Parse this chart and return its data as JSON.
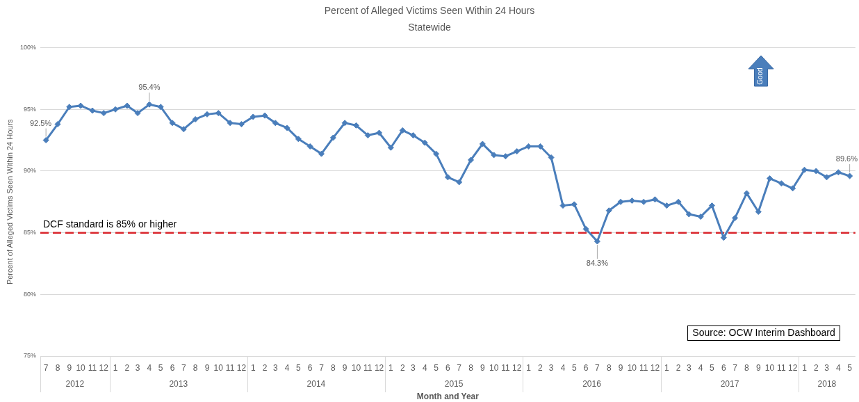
{
  "chart_data": {
    "type": "line",
    "title": "Percent of Alleged Victims Seen Within 24 Hours",
    "subtitle": "Statewide",
    "xlabel": "Month and Year",
    "ylabel": "Percent of Alleged Victims Seen Within 24 Hours",
    "x": [
      "2012-07",
      "2012-08",
      "2012-09",
      "2012-10",
      "2012-11",
      "2012-12",
      "2013-01",
      "2013-02",
      "2013-03",
      "2013-04",
      "2013-05",
      "2013-06",
      "2013-07",
      "2013-08",
      "2013-09",
      "2013-10",
      "2013-11",
      "2013-12",
      "2014-01",
      "2014-02",
      "2014-03",
      "2014-04",
      "2014-05",
      "2014-06",
      "2014-07",
      "2014-08",
      "2014-09",
      "2014-10",
      "2014-11",
      "2014-12",
      "2015-01",
      "2015-02",
      "2015-03",
      "2015-04",
      "2015-05",
      "2015-06",
      "2015-07",
      "2015-08",
      "2015-09",
      "2015-10",
      "2015-11",
      "2015-12",
      "2016-01",
      "2016-02",
      "2016-03",
      "2016-04",
      "2016-05",
      "2016-06",
      "2016-07",
      "2016-08",
      "2016-09",
      "2016-10",
      "2016-11",
      "2016-12",
      "2017-01",
      "2017-02",
      "2017-03",
      "2017-04",
      "2017-05",
      "2017-06",
      "2017-07",
      "2017-08",
      "2017-09",
      "2017-10",
      "2017-11",
      "2017-12",
      "2018-01",
      "2018-02",
      "2018-03",
      "2018-04",
      "2018-05"
    ],
    "values": [
      92.5,
      93.8,
      95.2,
      95.3,
      94.9,
      94.7,
      95.0,
      95.3,
      94.7,
      95.4,
      95.2,
      93.9,
      93.4,
      94.2,
      94.6,
      94.7,
      93.9,
      93.8,
      94.4,
      94.5,
      93.9,
      93.5,
      92.6,
      92.0,
      91.4,
      92.7,
      93.9,
      93.7,
      92.9,
      93.1,
      91.9,
      93.3,
      92.9,
      92.3,
      91.4,
      89.5,
      89.1,
      90.9,
      92.2,
      91.3,
      91.2,
      91.6,
      92.0,
      92.0,
      91.1,
      87.2,
      87.3,
      85.3,
      84.3,
      86.8,
      87.5,
      87.6,
      87.5,
      87.7,
      87.2,
      87.5,
      86.5,
      86.3,
      87.2,
      84.6,
      86.2,
      88.2,
      86.7,
      89.4,
      89.0,
      88.6,
      90.1,
      90.0,
      89.5,
      89.9,
      89.6
    ],
    "value_labels": [
      "92.5%",
      null,
      null,
      null,
      null,
      null,
      null,
      null,
      null,
      "95.4%",
      null,
      null,
      null,
      null,
      null,
      null,
      null,
      null,
      null,
      null,
      null,
      null,
      null,
      null,
      null,
      null,
      null,
      null,
      null,
      null,
      null,
      null,
      null,
      null,
      null,
      null,
      null,
      null,
      null,
      null,
      null,
      null,
      null,
      null,
      null,
      null,
      null,
      null,
      "84.3%",
      null,
      null,
      null,
      null,
      null,
      null,
      null,
      null,
      null,
      null,
      null,
      null,
      null,
      null,
      null,
      null,
      null,
      null,
      null,
      null,
      null,
      "89.6%"
    ],
    "color": "#4a7ebb",
    "marker": "diamond",
    "line_style": "solid",
    "ylim": [
      75,
      100
    ],
    "yticks": [
      {
        "value": 75,
        "label": "75%"
      },
      {
        "value": 80,
        "label": "80%"
      },
      {
        "value": 85,
        "label": "85%"
      },
      {
        "value": 90,
        "label": "90%"
      },
      {
        "value": 95,
        "label": "95%"
      },
      {
        "value": 100,
        "label": "100%"
      }
    ],
    "xlim": [
      "2012-06-16",
      "2018-05-16"
    ],
    "xticks": [
      {
        "value": "2012-07",
        "label": "7"
      },
      {
        "value": "2012-08",
        "label": "8"
      },
      {
        "value": "2012-09",
        "label": "9"
      },
      {
        "value": "2012-10",
        "label": "10"
      },
      {
        "value": "2012-11",
        "label": "11"
      },
      {
        "value": "2012-12",
        "label": "12"
      },
      {
        "value": "2013-01",
        "label": "1"
      },
      {
        "value": "2013-02",
        "label": "2"
      },
      {
        "value": "2013-03",
        "label": "3"
      },
      {
        "value": "2013-04",
        "label": "4"
      },
      {
        "value": "2013-05",
        "label": "5"
      },
      {
        "value": "2013-06",
        "label": "6"
      },
      {
        "value": "2013-07",
        "label": "7"
      },
      {
        "value": "2013-08",
        "label": "8"
      },
      {
        "value": "2013-09",
        "label": "9"
      },
      {
        "value": "2013-10",
        "label": "10"
      },
      {
        "value": "2013-11",
        "label": "11"
      },
      {
        "value": "2013-12",
        "label": "12"
      },
      {
        "value": "2014-01",
        "label": "1"
      },
      {
        "value": "2014-02",
        "label": "2"
      },
      {
        "value": "2014-03",
        "label": "3"
      },
      {
        "value": "2014-04",
        "label": "4"
      },
      {
        "value": "2014-05",
        "label": "5"
      },
      {
        "value": "2014-06",
        "label": "6"
      },
      {
        "value": "2014-07",
        "label": "7"
      },
      {
        "value": "2014-08",
        "label": "8"
      },
      {
        "value": "2014-09",
        "label": "9"
      },
      {
        "value": "2014-10",
        "label": "10"
      },
      {
        "value": "2014-11",
        "label": "11"
      },
      {
        "value": "2014-12",
        "label": "12"
      },
      {
        "value": "2015-01",
        "label": "1"
      },
      {
        "value": "2015-02",
        "label": "2"
      },
      {
        "value": "2015-03",
        "label": "3"
      },
      {
        "value": "2015-04",
        "label": "4"
      },
      {
        "value": "2015-05",
        "label": "5"
      },
      {
        "value": "2015-06",
        "label": "6"
      },
      {
        "value": "2015-07",
        "label": "7"
      },
      {
        "value": "2015-08",
        "label": "8"
      },
      {
        "value": "2015-09",
        "label": "9"
      },
      {
        "value": "2015-10",
        "label": "10"
      },
      {
        "value": "2015-11",
        "label": "11"
      },
      {
        "value": "2015-12",
        "label": "12"
      },
      {
        "value": "2016-01",
        "label": "1"
      },
      {
        "value": "2016-02",
        "label": "2"
      },
      {
        "value": "2016-03",
        "label": "3"
      },
      {
        "value": "2016-04",
        "label": "4"
      },
      {
        "value": "2016-05",
        "label": "5"
      },
      {
        "value": "2016-06",
        "label": "6"
      },
      {
        "value": "2016-07",
        "label": "7"
      },
      {
        "value": "2016-08",
        "label": "8"
      },
      {
        "value": "2016-09",
        "label": "9"
      },
      {
        "value": "2016-10",
        "label": "10"
      },
      {
        "value": "2016-11",
        "label": "11"
      },
      {
        "value": "2016-12",
        "label": "12"
      },
      {
        "value": "2017-01",
        "label": "1"
      },
      {
        "value": "2017-02",
        "label": "2"
      },
      {
        "value": "2017-03",
        "label": "3"
      },
      {
        "value": "2017-04",
        "label": "4"
      },
      {
        "value": "2017-05",
        "label": "5"
      },
      {
        "value": "2017-06",
        "label": "6"
      },
      {
        "value": "2017-07",
        "label": "7"
      },
      {
        "value": "2017-08",
        "label": "8"
      },
      {
        "value": "2017-09",
        "label": "9"
      },
      {
        "value": "2017-10",
        "label": "10"
      },
      {
        "value": "2017-11",
        "label": "11"
      },
      {
        "value": "2017-12",
        "label": "12"
      },
      {
        "value": "2018-01",
        "label": "1"
      },
      {
        "value": "2018-02",
        "label": "2"
      },
      {
        "value": "2018-03",
        "label": "3"
      },
      {
        "value": "2018-04",
        "label": "4"
      },
      {
        "value": "2018-05",
        "label": "5"
      }
    ],
    "grid": "y",
    "ref_lines": [
      {
        "axis": "y",
        "value": 85,
        "label": "DCF standard is 85% or higher",
        "color": "#d9262c",
        "line_style": "dashed"
      }
    ],
    "annotations": [
      "Good",
      "Source: OCW Interim Dashboard",
      "2012",
      "2013",
      "2014",
      "2015",
      "2016",
      "2017",
      "2018"
    ]
  }
}
